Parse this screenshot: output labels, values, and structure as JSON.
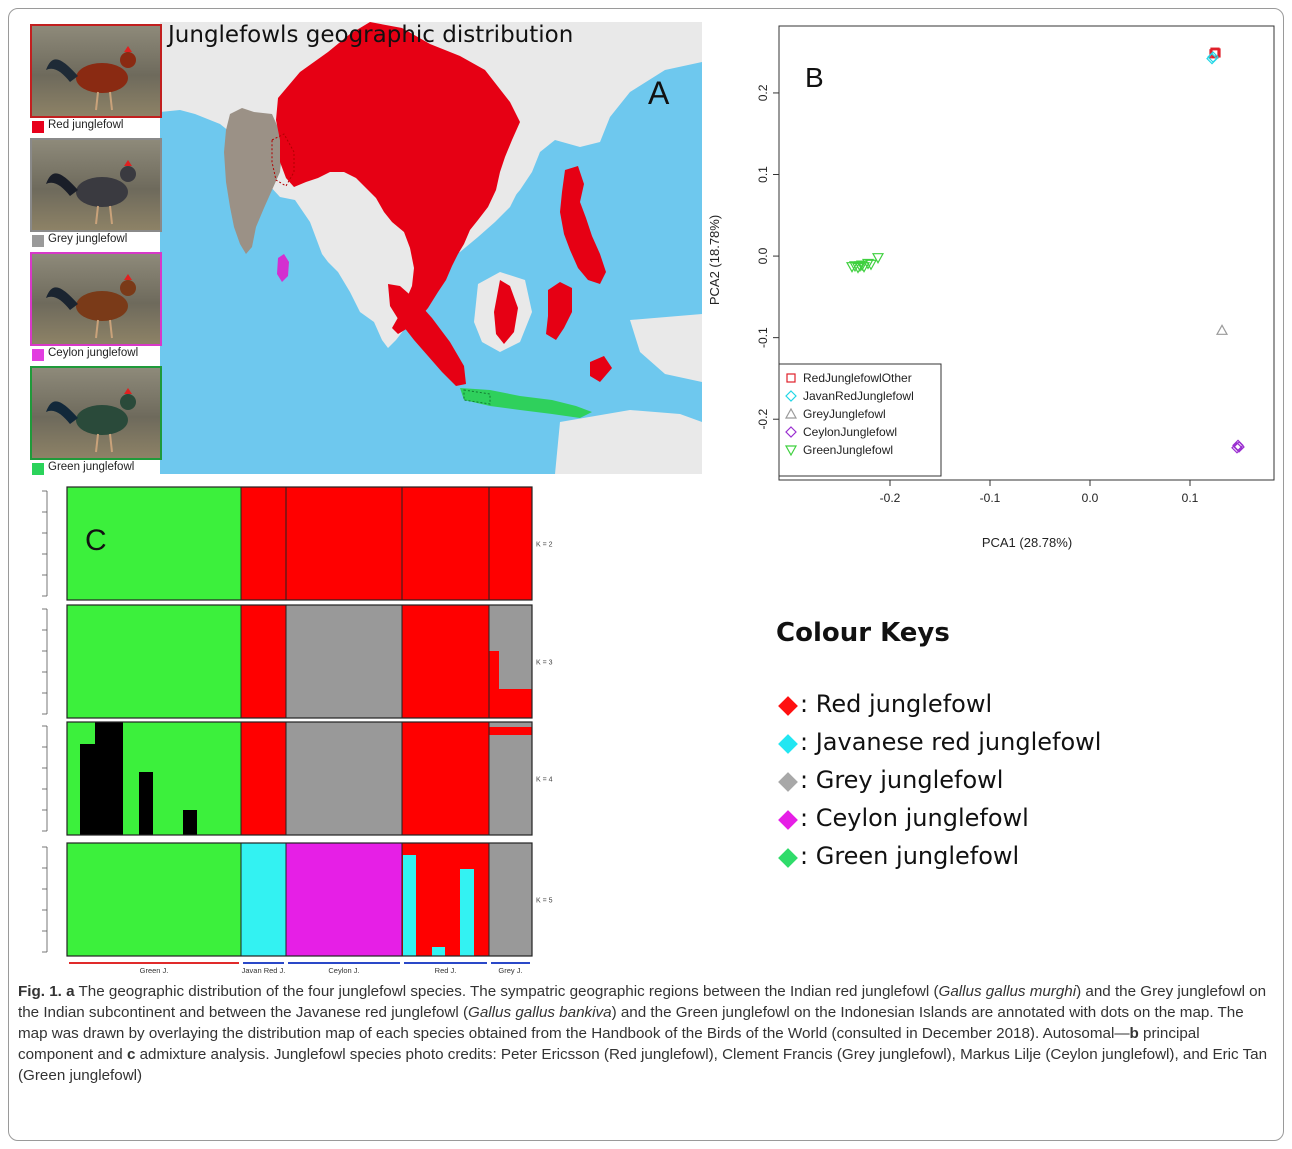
{
  "panel_a": {
    "title": "Junglefowls geographic distribution",
    "panel_letter": "A",
    "photos": [
      {
        "label": "Red junglefowl",
        "frame_color": "#c21f1f",
        "swatch": "#e8001c"
      },
      {
        "label": "Grey junglefowl",
        "frame_color": "#8a8a8a",
        "swatch": "#9a9a9a"
      },
      {
        "label": "Ceylon junglefowl",
        "frame_color": "#d838c8",
        "swatch": "#e23ee0"
      },
      {
        "label": "Green junglefowl",
        "frame_color": "#1f9a3a",
        "swatch": "#2bd35b"
      }
    ],
    "colors": {
      "sea": "#6ec8ee",
      "land": "#e9e9e9",
      "red": "#e60014",
      "grey": "#9b9186",
      "ceylon": "#d32fd0",
      "green": "#2fd05c"
    }
  },
  "panel_b": {
    "panel_letter": "B",
    "chart_data": {
      "type": "scatter",
      "xlabel": "PCA1 (28.78%)",
      "ylabel": "PCA2 (18.78%)",
      "xlim": [
        -0.27,
        0.17
      ],
      "ylim": [
        -0.25,
        0.26
      ],
      "xticks": [
        "-0.2",
        "-0.1",
        "0.0",
        "0.1"
      ],
      "xtick_values": [
        -0.2,
        -0.1,
        0.0,
        0.1
      ],
      "yticks": [
        "-0.2",
        "-0.1",
        "0.0",
        "0.1",
        "0.2"
      ],
      "ytick_values": [
        -0.2,
        -0.1,
        0.0,
        0.1,
        0.2
      ],
      "legend_position": "bottom-left",
      "series": [
        {
          "name": "RedJunglefowlOther",
          "color": "#e0202a",
          "marker": "square-plus",
          "points": [
            [
              0.125,
              0.25
            ],
            [
              0.126,
              0.249
            ],
            [
              0.124,
              0.248
            ]
          ]
        },
        {
          "name": "JavanRedJunglefowl",
          "color": "#22d6e6",
          "marker": "diamond-plus",
          "points": [
            [
              0.122,
              0.242
            ],
            [
              0.123,
              0.244
            ]
          ]
        },
        {
          "name": "GreyJunglefowl",
          "color": "#9a9a9a",
          "marker": "triangle",
          "points": [
            [
              0.132,
              -0.091
            ]
          ]
        },
        {
          "name": "CeylonJunglefowl",
          "color": "#9a2fd0",
          "marker": "diamond",
          "points": [
            [
              0.148,
              -0.232
            ],
            [
              0.149,
              -0.234
            ],
            [
              0.147,
              -0.235
            ]
          ]
        },
        {
          "name": "GreenJunglefowl",
          "color": "#3fd03f",
          "marker": "triangle-down",
          "points": [
            [
              -0.238,
              -0.013
            ],
            [
              -0.235,
              -0.012
            ],
            [
              -0.232,
              -0.014
            ],
            [
              -0.23,
              -0.012
            ],
            [
              -0.228,
              -0.011
            ],
            [
              -0.226,
              -0.013
            ],
            [
              -0.222,
              -0.009
            ],
            [
              -0.219,
              -0.01
            ],
            [
              -0.212,
              -0.002
            ]
          ]
        }
      ]
    }
  },
  "panel_c": {
    "panel_letter": "C",
    "chart_data": {
      "type": "bar",
      "stacked": true,
      "groups": [
        "Green J.",
        "Javan Red J.",
        "Ceylon J.",
        "Red J.",
        "Grey J."
      ],
      "group_underline_colors": [
        "#e02a2a",
        "#2a48c8",
        "#2a48c8",
        "#2a48c8",
        "#2a48c8"
      ],
      "rows": [
        {
          "k_label": "K = 2",
          "segments": [
            {
              "color": "#3cf03c",
              "fraction": 1.0
            },
            {
              "color": "#ff0000",
              "fraction": 1.0
            },
            {
              "color": "#ff0000",
              "fraction": 1.0
            },
            {
              "color": "#ff0000",
              "fraction": 1.0
            },
            {
              "color": "#ff0000",
              "fraction": 1.0
            }
          ]
        },
        {
          "k_label": "K = 3",
          "segments": [
            {
              "color": "#3cf03c",
              "fraction": 1.0
            },
            {
              "color": "#ff0000",
              "fraction": 1.0
            },
            {
              "color": "#999999",
              "fraction": 1.0
            },
            {
              "color": "#ff0000",
              "fraction": 1.0
            },
            {
              "color": "#999999",
              "fraction": 1.0
            }
          ]
        },
        {
          "k_label": "K = 4",
          "segments": [
            {
              "color": "#3cf03c",
              "fraction": 1.0
            },
            {
              "color": "#ff0000",
              "fraction": 1.0
            },
            {
              "color": "#999999",
              "fraction": 1.0
            },
            {
              "color": "#ff0000",
              "fraction": 1.0
            },
            {
              "color": "#999999",
              "fraction": 1.0
            }
          ]
        },
        {
          "k_label": "K = 5",
          "segments": [
            {
              "color": "#3cf03c",
              "fraction": 1.0
            },
            {
              "color": "#33f2f2",
              "fraction": 1.0
            },
            {
              "color": "#e61fe6",
              "fraction": 1.0
            },
            {
              "color": "#ff0000",
              "fraction": 1.0
            },
            {
              "color": "#999999",
              "fraction": 1.0
            }
          ]
        }
      ]
    }
  },
  "colour_keys": {
    "title": "Colour Keys",
    "items": [
      {
        "label": ": Red junglefowl",
        "color": "#ff1010"
      },
      {
        "label": ": Javanese red junglefowl",
        "color": "#22e6f2"
      },
      {
        "label": ": Grey junglefowl",
        "color": "#a8a8a8"
      },
      {
        "label": ": Ceylon junglefowl",
        "color": "#e61fe6"
      },
      {
        "label": ": Green junglefowl",
        "color": "#2fdc6a"
      }
    ]
  },
  "caption": {
    "fig_label": "Fig. 1.",
    "a": "a",
    "text1": " The geographic distribution of the four junglefowl species. The sympatric geographic regions between the Indian red junglefowl (",
    "sp1": "Gallus gallus murghi",
    "text2": ") and the Grey junglefowl on the Indian subcontinent and between the Javanese red junglefowl (",
    "sp2": "Gallus gallus bankiva",
    "text3": ") and the Green junglefowl on the Indonesian Islands are annotated with dots on the map. The map was drawn by overlaying the distribution map of each species obtained from the Handbook of the Birds of the World (consulted in December 2018). Autosomal—",
    "b": "b",
    "text4": " principal component and ",
    "c": "c",
    "text5": " admixture analysis. Junglefowl species photo credits: Peter Ericsson (Red junglefowl), Clement Francis (Grey junglefowl), Markus Lilje (Ceylon junglefowl), and Eric Tan (Green junglefowl)"
  }
}
